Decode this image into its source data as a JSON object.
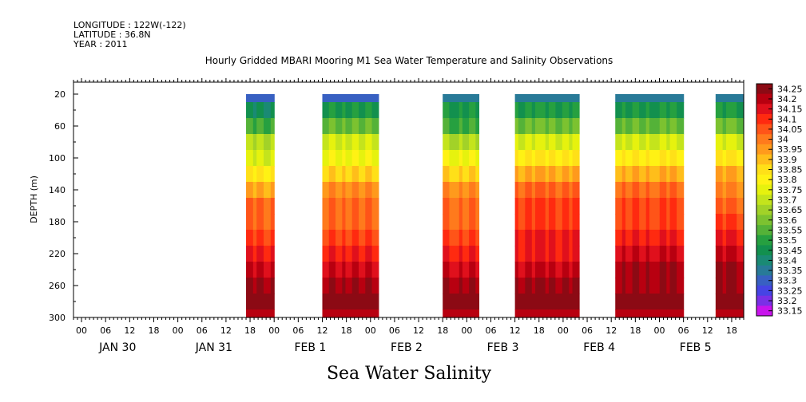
{
  "header": {
    "longitude": "LONGITUDE : 122W(-122)",
    "latitude": "LATITUDE : 36.8N",
    "year": "YEAR : 2011"
  },
  "chart_data": {
    "type": "heatmap",
    "title": "Hourly Gridded MBARI Mooring M1 Sea Water Temperature and Salinity Observations",
    "caption": "Sea Water Salinity",
    "ylabel": "DEPTH (m)",
    "y_range": [
      300,
      5
    ],
    "y_ticks": [
      20,
      60,
      100,
      140,
      180,
      220,
      260,
      300
    ],
    "x_hour_labels": [
      "00",
      "06",
      "12",
      "18",
      "00",
      "06",
      "12",
      "18",
      "00",
      "06",
      "12",
      "18",
      "00",
      "06",
      "12",
      "18",
      "00",
      "06",
      "12",
      "18",
      "00",
      "06",
      "12",
      "18",
      "00",
      "06",
      "12",
      "18"
    ],
    "x_day_labels": [
      "JAN 30",
      "JAN 31",
      "FEB  1",
      "FEB  2",
      "FEB  3",
      "FEB  4",
      "FEB  5"
    ],
    "x_range_hours": [
      -2,
      165
    ],
    "colorbar_labels": [
      "34.25",
      "34.2",
      "34.15",
      "34.1",
      "34.05",
      "34",
      "33.95",
      "33.9",
      "33.85",
      "33.8",
      "33.75",
      "33.7",
      "33.65",
      "33.6",
      "33.55",
      "33.5",
      "33.45",
      "33.4",
      "33.35",
      "33.3",
      "33.25",
      "33.2",
      "33.15"
    ],
    "colorbar_colors": [
      "#8c0a14",
      "#b80010",
      "#e0101c",
      "#ff2a10",
      "#ff5418",
      "#ff7a1c",
      "#ff9a1c",
      "#ffbe1a",
      "#ffe018",
      "#fff214",
      "#e6f20e",
      "#c4e41c",
      "#a2d228",
      "#7cc230",
      "#54b238",
      "#26a040",
      "#12904e",
      "#1a8a74",
      "#287a98",
      "#3860c2",
      "#4644e4",
      "#7a30e6",
      "#c814ec"
    ],
    "depth_levels": [
      20,
      40,
      60,
      80,
      100,
      120,
      140,
      160,
      180,
      200,
      220,
      240,
      260,
      280,
      300
    ],
    "segments": [
      {
        "start_hour": 41,
        "end_hour": 48,
        "profile": [
          33.25,
          33.4,
          33.5,
          33.65,
          33.7,
          33.8,
          33.9,
          34.0,
          34.0,
          34.05,
          34.1,
          34.15,
          34.2,
          34.2,
          34.15
        ]
      },
      {
        "start_hour": 60,
        "end_hour": 74,
        "profile": [
          33.28,
          33.45,
          33.55,
          33.7,
          33.75,
          33.85,
          33.95,
          34.0,
          34.0,
          34.05,
          34.1,
          34.15,
          34.2,
          34.2,
          34.15
        ]
      },
      {
        "start_hour": 90,
        "end_hour": 99,
        "profile": [
          33.3,
          33.45,
          33.5,
          33.65,
          33.75,
          33.85,
          33.95,
          34.0,
          34.0,
          34.05,
          34.1,
          34.15,
          34.2,
          34.2,
          34.15
        ]
      },
      {
        "start_hour": 108,
        "end_hour": 124,
        "profile": [
          33.3,
          33.45,
          33.55,
          33.7,
          33.8,
          33.9,
          34.0,
          34.05,
          34.05,
          34.1,
          34.1,
          34.15,
          34.2,
          34.2,
          34.15
        ]
      },
      {
        "start_hour": 133,
        "end_hour": 150,
        "profile": [
          33.3,
          33.45,
          33.55,
          33.7,
          33.8,
          33.9,
          34.0,
          34.05,
          34.05,
          34.1,
          34.15,
          34.2,
          34.2,
          34.2,
          34.15
        ]
      },
      {
        "start_hour": 158,
        "end_hour": 165,
        "profile": [
          33.3,
          33.45,
          33.55,
          33.7,
          33.8,
          33.9,
          33.95,
          34.0,
          34.05,
          34.1,
          34.15,
          34.2,
          34.2,
          34.2,
          34.15
        ]
      }
    ],
    "grid": false,
    "legend": "right"
  }
}
